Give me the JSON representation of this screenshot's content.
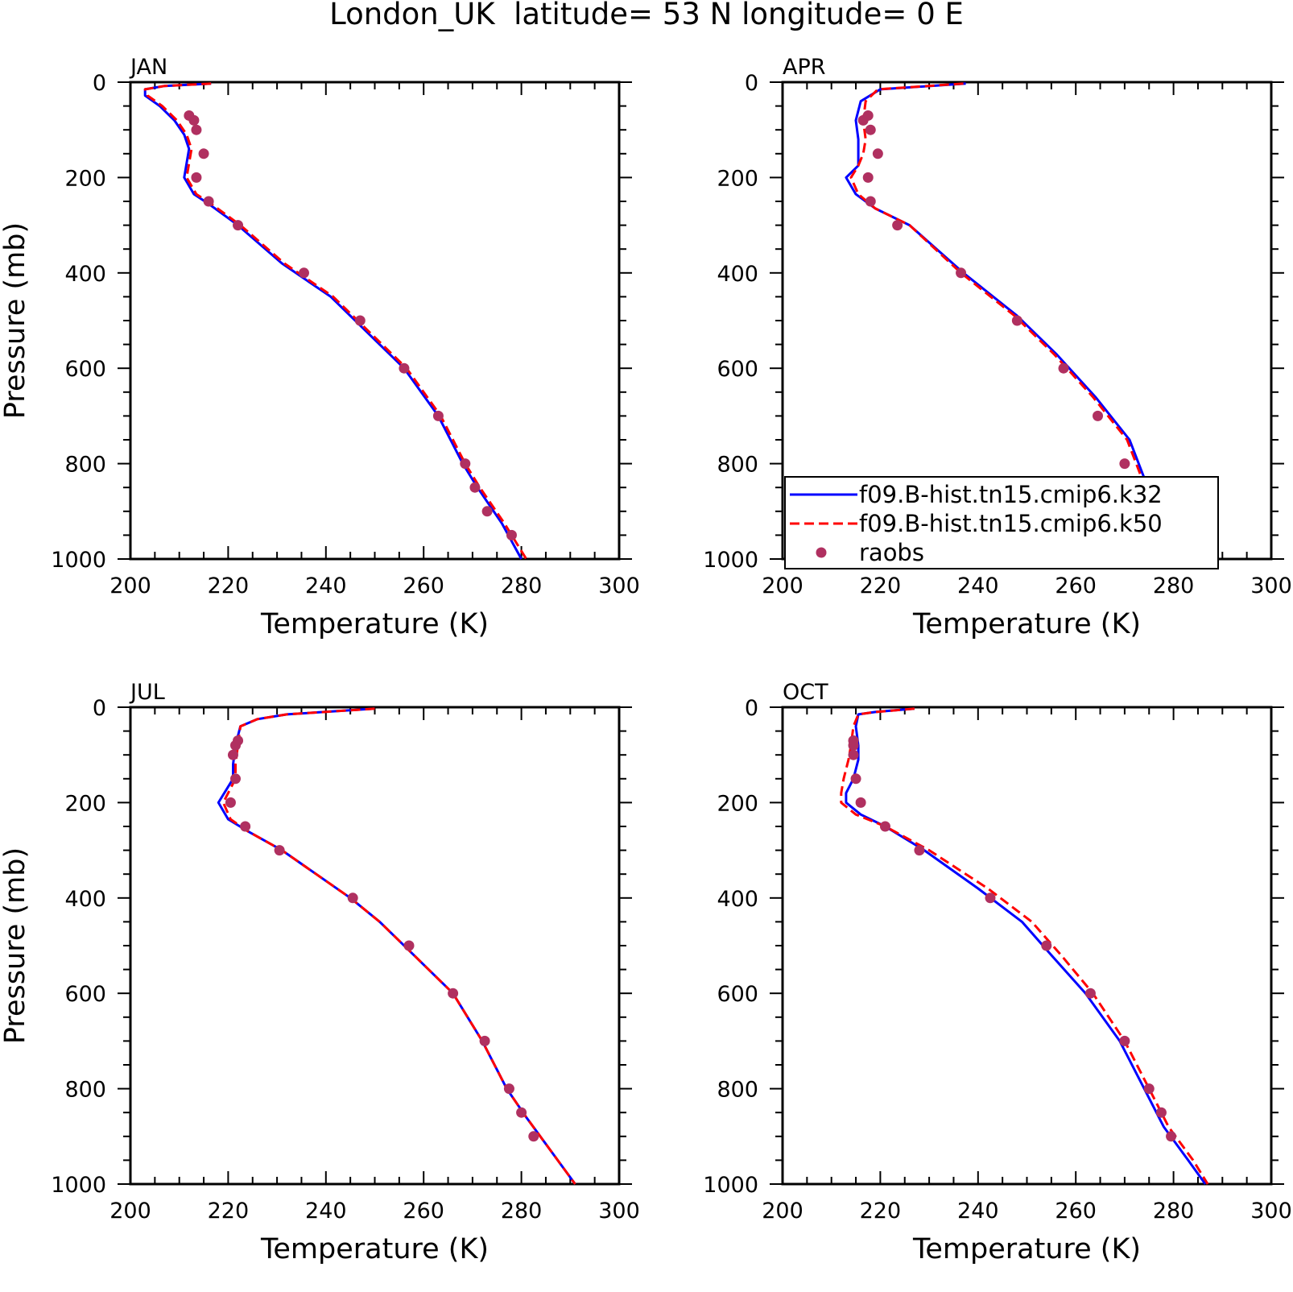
{
  "figure": {
    "title": "London_UK  latitude= 53 N longitude= 0 E"
  },
  "chart_data": [
    {
      "type": "line",
      "title": "JAN",
      "xlabel": "Temperature (K)",
      "ylabel": "Pressure (mb)",
      "xlim": [
        200,
        300
      ],
      "ylim": [
        1000,
        0
      ],
      "y_inverted": true,
      "xticks": [
        "200",
        "220",
        "240",
        "260",
        "280",
        "300"
      ],
      "yticks": [
        "0",
        "200",
        "400",
        "600",
        "800",
        "1000"
      ],
      "grid": false,
      "series": [
        {
          "name": "f09.B-hist.tn15.cmip6.k32",
          "style": "solid",
          "color": "#0000ff",
          "x": [
            216.5,
            207,
            203,
            203,
            206,
            209,
            211,
            212,
            211.5,
            211,
            213,
            216,
            222,
            231,
            241,
            249,
            256,
            263,
            268,
            271,
            276,
            280
          ],
          "y": [
            3,
            8,
            15,
            28,
            50,
            80,
            110,
            140,
            170,
            200,
            235,
            255,
            300,
            380,
            450,
            530,
            600,
            700,
            800,
            850,
            925,
            1000
          ]
        },
        {
          "name": "f09.B-hist.tn15.cmip6.k50",
          "style": "dashed",
          "color": "#ff0000",
          "x": [
            216.5,
            207,
            203,
            203.5,
            206.5,
            209.5,
            211.5,
            212.5,
            212,
            211.5,
            213.5,
            216.5,
            222.5,
            231.5,
            241.5,
            249.5,
            256.5,
            263.5,
            268.5,
            271.5,
            276.5,
            281
          ],
          "y": [
            3,
            8,
            15,
            28,
            50,
            80,
            110,
            140,
            170,
            200,
            235,
            255,
            300,
            380,
            450,
            530,
            600,
            700,
            800,
            850,
            925,
            1000
          ]
        },
        {
          "name": "raobs",
          "style": "markers",
          "color": "#b03060",
          "x": [
            212,
            213,
            213.5,
            215,
            213.5,
            216,
            222,
            235.5,
            247,
            256,
            263,
            268.5,
            270.5,
            273,
            278
          ],
          "y": [
            70,
            80,
            100,
            150,
            200,
            250,
            300,
            400,
            500,
            600,
            700,
            800,
            850,
            900,
            950
          ]
        }
      ]
    },
    {
      "type": "line",
      "title": "APR",
      "xlabel": "Temperature (K)",
      "ylabel": "",
      "xlim": [
        200,
        300
      ],
      "ylim": [
        1000,
        0
      ],
      "y_inverted": true,
      "xticks": [
        "200",
        "220",
        "240",
        "260",
        "280",
        "300"
      ],
      "yticks": [
        "0",
        "200",
        "400",
        "600",
        "800",
        "1000"
      ],
      "grid": false,
      "legend": "bottom-right",
      "series": [
        {
          "name": "f09.B-hist.tn15.cmip6.k32",
          "style": "solid",
          "color": "#0000ff",
          "x": [
            237.5,
            220,
            216,
            215,
            215.5,
            215.5,
            215.5,
            213,
            215,
            219,
            226,
            237,
            248,
            256,
            264,
            271,
            274,
            279,
            283
          ],
          "y": [
            3,
            15,
            40,
            80,
            120,
            150,
            175,
            200,
            235,
            265,
            300,
            400,
            490,
            570,
            660,
            750,
            830,
            910,
            1000
          ]
        },
        {
          "name": "f09.B-hist.tn15.cmip6.k50",
          "style": "dashed",
          "color": "#ff0000",
          "x": [
            237,
            219.5,
            217,
            216.5,
            217,
            216.5,
            215.5,
            214,
            215.5,
            219,
            226,
            236.5,
            247.5,
            255.5,
            263.5,
            270.5,
            273.5,
            278.5,
            283
          ],
          "y": [
            3,
            15,
            40,
            80,
            120,
            150,
            175,
            200,
            235,
            265,
            300,
            400,
            490,
            570,
            660,
            750,
            830,
            910,
            1000
          ]
        },
        {
          "name": "raobs",
          "style": "markers",
          "color": "#b03060",
          "x": [
            217.5,
            216.5,
            218,
            219.5,
            217.5,
            218,
            223.5,
            236.5,
            248,
            257.5,
            264.5,
            270,
            272.5,
            275
          ],
          "y": [
            70,
            80,
            100,
            150,
            200,
            250,
            300,
            400,
            500,
            600,
            700,
            800,
            850,
            900
          ]
        }
      ]
    },
    {
      "type": "line",
      "title": "JUL",
      "xlabel": "Temperature (K)",
      "ylabel": "Pressure (mb)",
      "xlim": [
        200,
        300
      ],
      "ylim": [
        1000,
        0
      ],
      "y_inverted": true,
      "xticks": [
        "200",
        "220",
        "240",
        "260",
        "280",
        "300"
      ],
      "yticks": [
        "0",
        "200",
        "400",
        "600",
        "800",
        "1000"
      ],
      "grid": false,
      "series": [
        {
          "name": "f09.B-hist.tn15.cmip6.k32",
          "style": "solid",
          "color": "#0000ff",
          "x": [
            250,
            232,
            226,
            222.5,
            221.5,
            221,
            221,
            218,
            220,
            224,
            231,
            238,
            245,
            251,
            258,
            266,
            272,
            277,
            281,
            291
          ],
          "y": [
            3,
            15,
            25,
            40,
            80,
            120,
            150,
            200,
            235,
            260,
            300,
            350,
            400,
            450,
            520,
            600,
            700,
            800,
            860,
            1000
          ]
        },
        {
          "name": "f09.B-hist.tn15.cmip6.k50",
          "style": "dashed",
          "color": "#ff0000",
          "x": [
            250,
            232,
            226,
            222.5,
            222,
            221.5,
            221.5,
            219,
            220.5,
            224,
            231,
            238,
            245,
            251,
            258,
            266,
            272,
            277,
            281,
            291
          ],
          "y": [
            3,
            15,
            25,
            40,
            80,
            120,
            150,
            200,
            235,
            260,
            300,
            350,
            400,
            450,
            520,
            600,
            700,
            800,
            860,
            1000
          ]
        },
        {
          "name": "raobs",
          "style": "markers",
          "color": "#b03060",
          "x": [
            222,
            221.5,
            221,
            221.5,
            220.5,
            223.5,
            230.5,
            245.5,
            257,
            266,
            272.5,
            277.5,
            280,
            282.5
          ],
          "y": [
            70,
            80,
            100,
            150,
            200,
            250,
            300,
            400,
            500,
            600,
            700,
            800,
            850,
            900
          ]
        }
      ]
    },
    {
      "type": "line",
      "title": "OCT",
      "xlabel": "Temperature (K)",
      "ylabel": "",
      "xlim": [
        200,
        300
      ],
      "ylim": [
        1000,
        0
      ],
      "y_inverted": true,
      "xticks": [
        "200",
        "220",
        "240",
        "260",
        "280",
        "300"
      ],
      "yticks": [
        "0",
        "200",
        "400",
        "600",
        "800",
        "1000"
      ],
      "grid": false,
      "series": [
        {
          "name": "f09.B-hist.tn15.cmip6.k32",
          "style": "solid",
          "color": "#0000ff",
          "x": [
            227,
            219,
            215.5,
            215,
            215.5,
            215.5,
            214.5,
            213,
            213,
            216,
            221,
            229,
            240,
            249,
            255,
            262,
            269,
            274,
            278,
            283,
            286.5
          ],
          "y": [
            3,
            10,
            15,
            40,
            80,
            110,
            150,
            180,
            200,
            225,
            250,
            300,
            380,
            450,
            520,
            600,
            700,
            800,
            880,
            950,
            1000
          ]
        },
        {
          "name": "f09.B-hist.tn15.cmip6.k50",
          "style": "dashed",
          "color": "#ff0000",
          "x": [
            227,
            219,
            215.5,
            214.5,
            214,
            213.5,
            212.5,
            212,
            212,
            215,
            221,
            230,
            242,
            251,
            257,
            263.5,
            270,
            275,
            279,
            284,
            287
          ],
          "y": [
            3,
            10,
            15,
            40,
            80,
            110,
            150,
            180,
            200,
            225,
            250,
            300,
            380,
            450,
            520,
            600,
            700,
            800,
            880,
            950,
            1000
          ]
        },
        {
          "name": "raobs",
          "style": "markers",
          "color": "#b03060",
          "x": [
            214.5,
            214.5,
            214.5,
            215,
            216,
            221,
            228,
            242.5,
            254,
            263,
            270,
            275,
            277.5,
            279.5
          ],
          "y": [
            70,
            80,
            100,
            150,
            200,
            250,
            300,
            400,
            500,
            600,
            700,
            800,
            850,
            900
          ]
        }
      ]
    }
  ]
}
